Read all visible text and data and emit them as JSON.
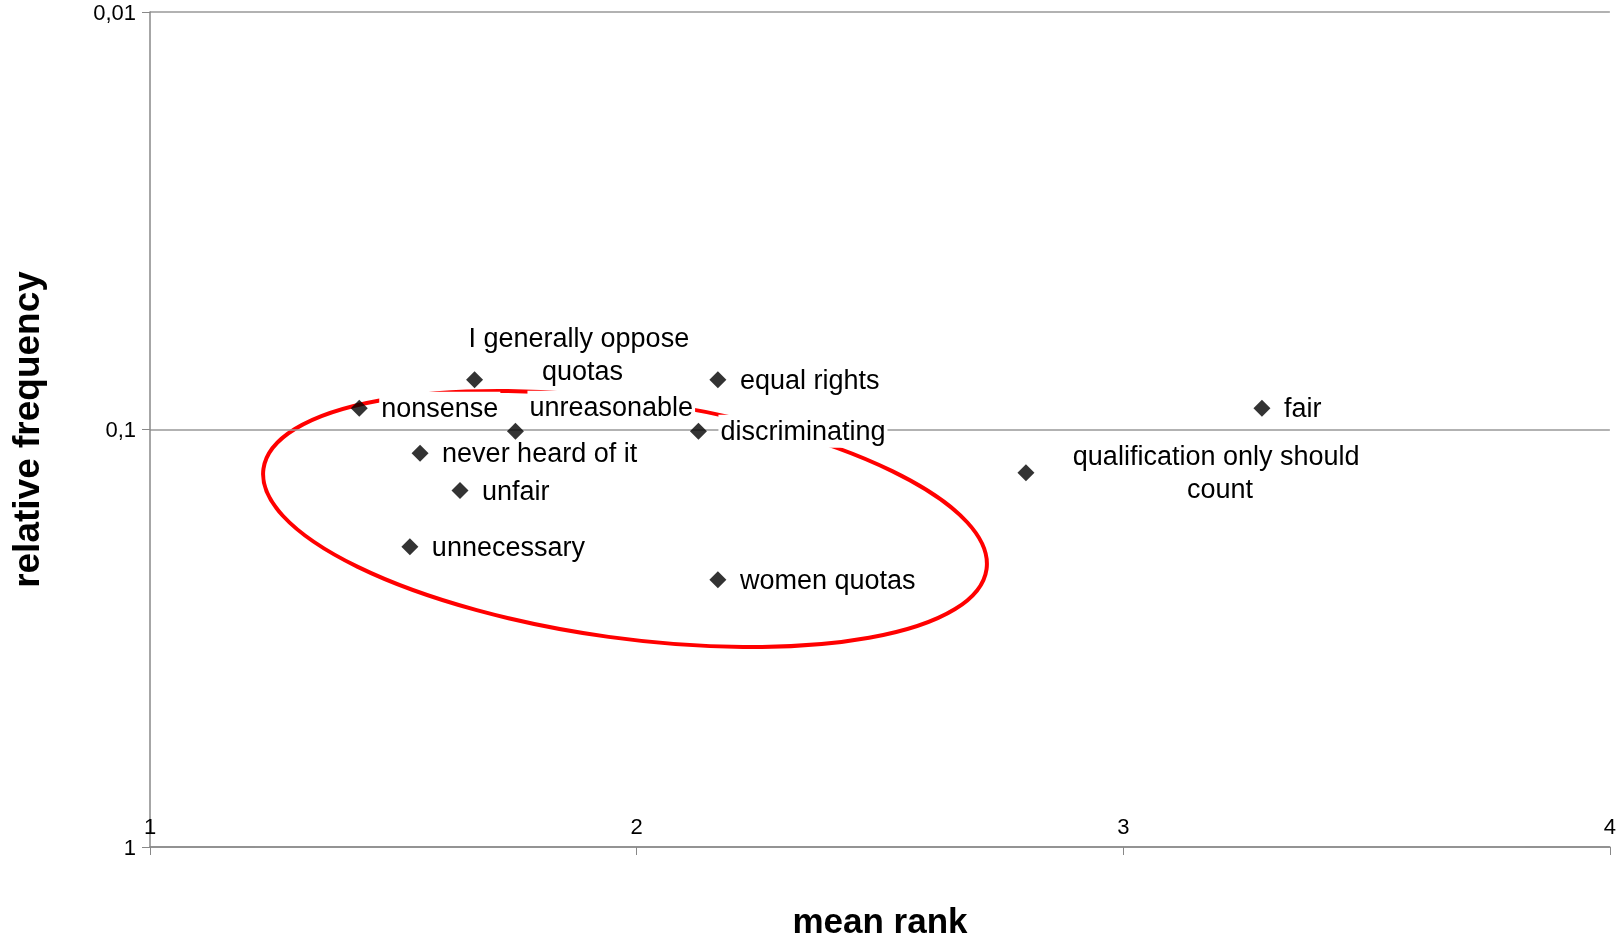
{
  "chart_data": {
    "type": "scatter",
    "xlabel": "mean rank",
    "ylabel": "relative frequency",
    "log": "y",
    "grid": "y",
    "marker": "diamond",
    "xlim": [
      1,
      4
    ],
    "xticks": [
      1,
      2,
      3,
      4
    ],
    "ylim": [
      1,
      0.01
    ],
    "yticks": [
      {
        "value": 0.01,
        "label": "0,01"
      },
      {
        "value": 0.1,
        "label": "0,1"
      },
      {
        "value": 1,
        "label": "1"
      }
    ],
    "series": [
      {
        "color": "#000000",
        "x": [
          1.667,
          2.167,
          1.43,
          3.285,
          1.751,
          2.127,
          1.555,
          1.637,
          2.8,
          1.534,
          2.167
        ],
        "values": [
          0.076,
          0.076,
          0.089,
          0.089,
          0.101,
          0.101,
          0.114,
          0.14,
          0.127,
          0.191,
          0.229
        ]
      }
    ],
    "annotations": [
      {
        "text": "I generally oppose quotas",
        "x": 1.667,
        "y": 0.076
      },
      {
        "text": "equal rights",
        "x": 2.167,
        "y": 0.076
      },
      {
        "text": "nonsense",
        "x": 1.43,
        "y": 0.089
      },
      {
        "text": "fair",
        "x": 3.285,
        "y": 0.089
      },
      {
        "text": "unreasonable",
        "x": 1.751,
        "y": 0.101
      },
      {
        "text": "discriminating",
        "x": 2.127,
        "y": 0.101
      },
      {
        "text": "never heard of it",
        "x": 1.555,
        "y": 0.114
      },
      {
        "text": "unfair",
        "x": 1.637,
        "y": 0.14
      },
      {
        "text": "qualification only should count",
        "x": 2.8,
        "y": 0.127
      },
      {
        "text": "unnecessary",
        "x": 1.534,
        "y": 0.191
      },
      {
        "text": "women quotas",
        "x": 2.167,
        "y": 0.229
      }
    ]
  }
}
